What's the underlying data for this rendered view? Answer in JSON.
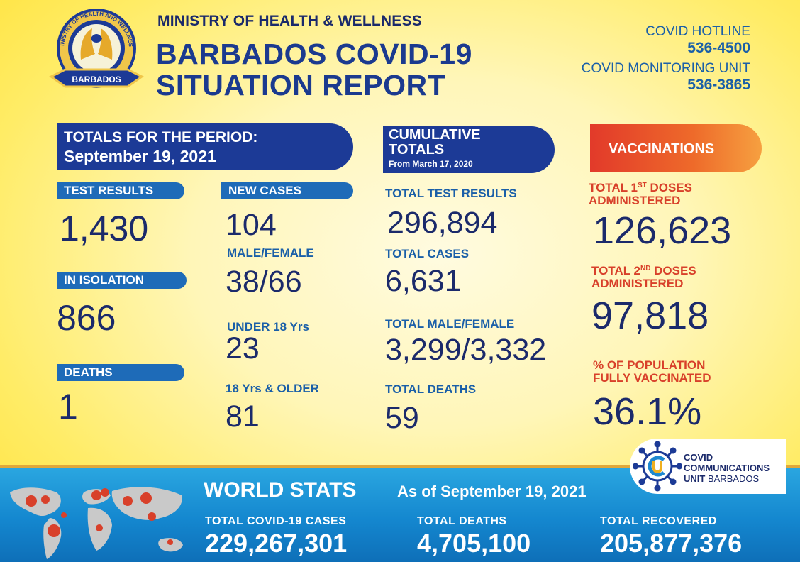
{
  "header": {
    "seal_top_text": "MINISTRY OF HEALTH AND WELLNESS",
    "seal_bottom_text": "BARBADOS",
    "ministry": "MINISTRY OF HEALTH & WELLNESS",
    "title_line1": "BARBADOS COVID-19",
    "title_line2": "SITUATION REPORT",
    "hotline_label": "COVID HOTLINE",
    "hotline_number": "536-4500",
    "monitoring_label": "COVID MONITORING UNIT",
    "monitoring_number": "536-3865"
  },
  "period": {
    "banner_line1": "TOTALS FOR THE PERIOD:",
    "banner_line2": "September 19, 2021",
    "test_results_label": "TEST RESULTS",
    "test_results_value": "1,430",
    "isolation_label": "IN ISOLATION",
    "isolation_value": "866",
    "deaths_label": "DEATHS",
    "deaths_value": "1",
    "new_cases_label": "NEW CASES",
    "new_cases_value": "104",
    "male_female_label": "MALE/FEMALE",
    "male_female_value": "38/66",
    "under18_label": "UNDER 18 Yrs",
    "under18_value": "23",
    "over18_label": "18 Yrs & OLDER",
    "over18_value": "81"
  },
  "cumulative": {
    "banner_line1": "CUMULATIVE TOTALS",
    "banner_line2": "From March 17, 2020",
    "total_tests_label": "TOTAL TEST RESULTS",
    "total_tests_value": "296,894",
    "total_cases_label": "TOTAL CASES",
    "total_cases_value": "6,631",
    "total_mf_label": "TOTAL MALE/FEMALE",
    "total_mf_value": "3,299/3,332",
    "total_deaths_label": "TOTAL DEATHS",
    "total_deaths_value": "59"
  },
  "vaccinations": {
    "banner": "VACCINATIONS",
    "first_label_a": "TOTAL 1",
    "first_label_sup": "ST",
    "first_label_b": " DOSES",
    "first_label_c": "ADMINISTERED",
    "first_value": "126,623",
    "second_label_a": "TOTAL 2",
    "second_label_sup": "ND",
    "second_label_b": " DOSES",
    "second_label_c": "ADMINISTERED",
    "second_value": "97,818",
    "pct_label_1": "% OF POPULATION",
    "pct_label_2": "FULLY VACCINATED",
    "pct_value": "36.1%"
  },
  "world": {
    "title": "WORLD STATS",
    "as_of": "As of September 19, 2021",
    "cases_label": "TOTAL  COVID-19  CASES",
    "cases_value": "229,267,301",
    "deaths_label": "TOTAL  DEATHS",
    "deaths_value": "4,705,100",
    "recovered_label": "TOTAL  RECOVERED",
    "recovered_value": "205,877,376"
  },
  "ccu": {
    "line1": "COVID",
    "line2": "COMMUNICATIONS",
    "line3a": "UNIT",
    "line3b": "BARBADOS"
  },
  "colors": {
    "navy": "#1b2a6b",
    "blue_label": "#1a5fa8",
    "banner_blue": "#1c3a96",
    "vaccination_red": "#d8402a",
    "footer_blue": "#1487cf",
    "background_yellow": "#fff6b8"
  }
}
